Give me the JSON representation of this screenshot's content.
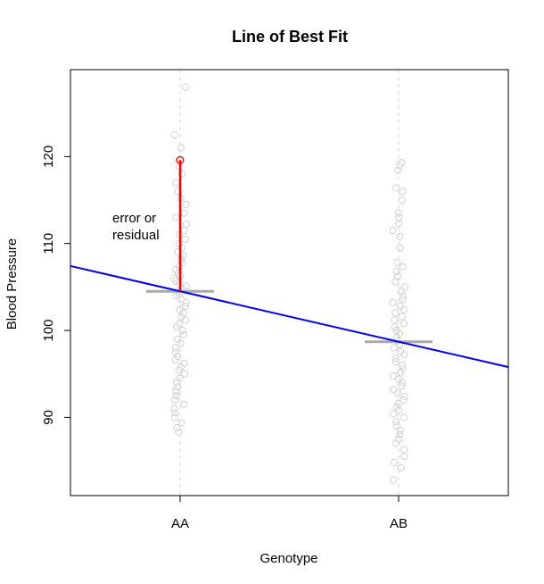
{
  "chart_data": {
    "type": "scatter",
    "title": "Line of Best Fit",
    "xlabel": "Genotype",
    "ylabel": "Blood Pressure",
    "categories": [
      "AA",
      "AB"
    ],
    "ylim": [
      81,
      130
    ],
    "yticks": [
      90,
      100,
      110,
      120
    ],
    "grid": false,
    "legend": "none",
    "series": [
      {
        "category": "AA",
        "values": [
          128,
          122.5,
          121,
          119.5,
          118.8,
          118,
          117,
          116,
          115.2,
          114.5,
          113.5,
          113,
          112.2,
          111.5,
          111,
          110.5,
          110,
          109.5,
          109,
          108.6,
          108.2,
          107.8,
          107.4,
          107,
          106.6,
          106.3,
          106,
          105.7,
          105.4,
          105.1,
          104.8,
          104.5,
          104.2,
          104,
          103.6,
          103.2,
          102.8,
          102.4,
          102,
          101.6,
          101.2,
          100.8,
          100.4,
          100,
          99.5,
          99,
          98.5,
          98,
          97.5,
          97,
          96.6,
          96.2,
          95.8,
          95.4,
          95,
          94.5,
          94,
          93.5,
          93,
          92.5,
          92,
          91.5,
          91,
          90.5,
          90,
          89.4,
          88.8,
          88.3
        ],
        "color": "#d3d3d3"
      },
      {
        "category": "AB",
        "values": [
          119.3,
          119,
          118.4,
          116.4,
          116,
          115,
          113.5,
          113,
          112.3,
          111.5,
          110.8,
          109.5,
          107.8,
          107.3,
          106.8,
          106.2,
          105.6,
          105,
          104.5,
          104,
          103.6,
          103.2,
          102.8,
          102.4,
          102,
          101.6,
          101.2,
          100.8,
          100.4,
          100,
          99.6,
          99.2,
          98.8,
          98.4,
          98,
          97.6,
          97.2,
          96.8,
          96.4,
          96,
          95.6,
          95.2,
          94.8,
          94.4,
          94,
          93.6,
          93.2,
          92.8,
          92.4,
          92,
          91.6,
          91.2,
          90.8,
          90.4,
          90,
          89.5,
          89,
          88.5,
          88,
          87.5,
          87,
          86.3,
          85.5,
          84.8,
          84.2,
          82.8
        ],
        "color": "#d3d3d3"
      }
    ],
    "group_means": [
      {
        "category": "AA",
        "value": 104.5,
        "color": "#a9a9a9"
      },
      {
        "category": "AB",
        "value": 98.7,
        "color": "#a9a9a9"
      }
    ],
    "fit_line": {
      "color": "#0000ee",
      "at_AA": 104.5,
      "at_AB": 98.7
    },
    "highlight": {
      "category": "AA",
      "point": 119.6,
      "mean": 104.5,
      "color": "#ff0000",
      "annotation": [
        "error or",
        "residual"
      ]
    }
  }
}
